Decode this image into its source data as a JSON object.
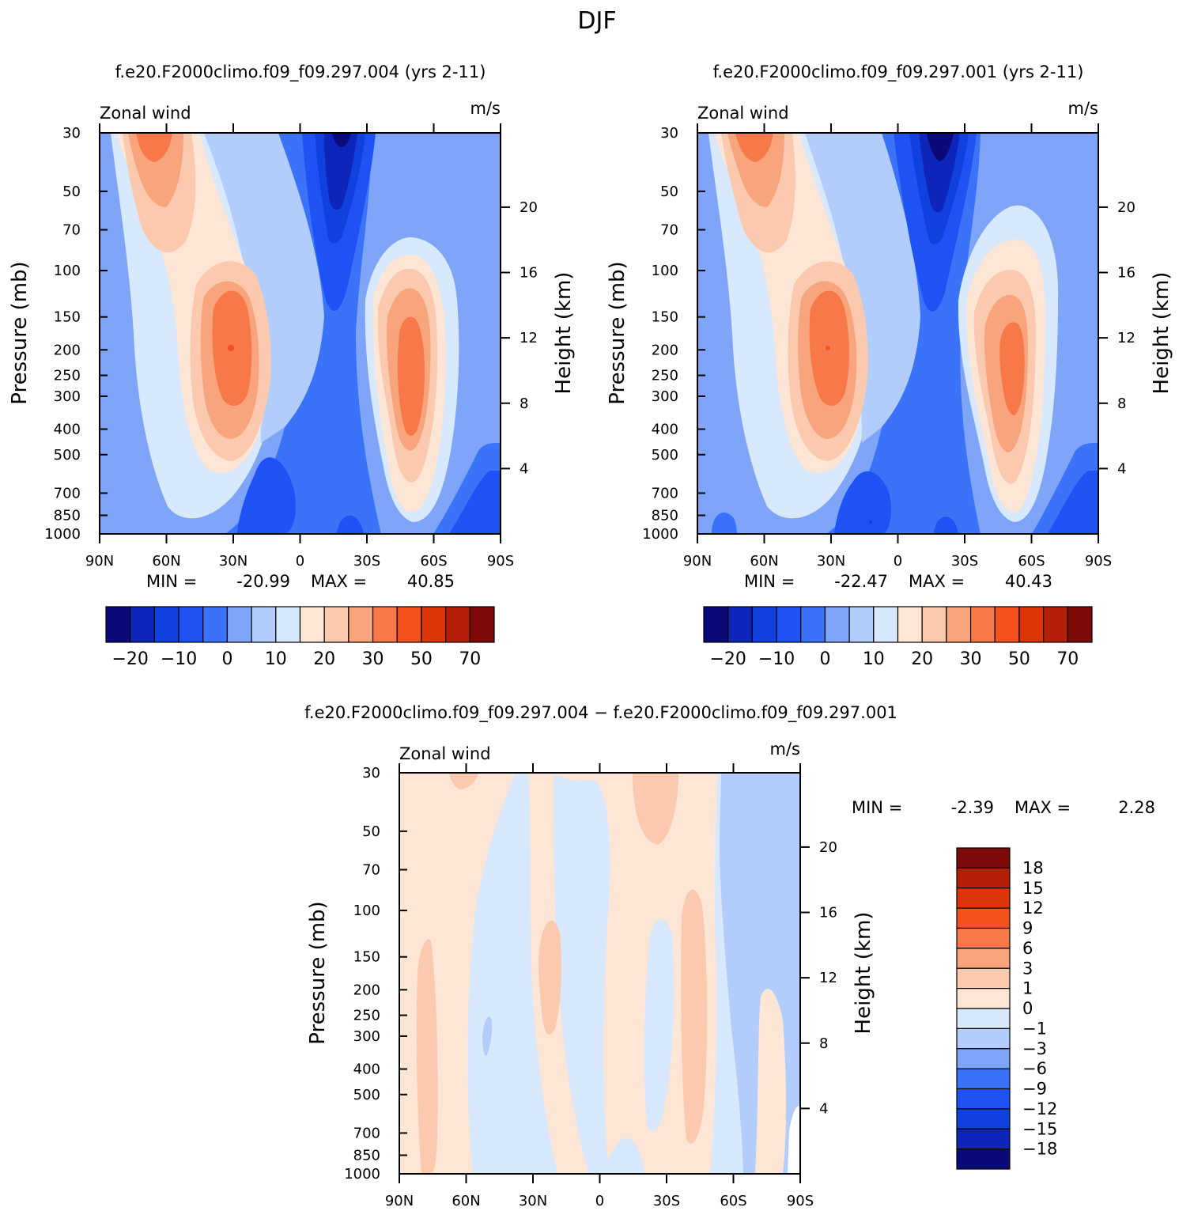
{
  "figure": {
    "season": "DJF",
    "field_label": "Zonal wind",
    "units": "m/s",
    "pressure_label": "Pressure (mb)",
    "height_label": "Height (km)"
  },
  "chart_data": [
    {
      "type": "heatmap",
      "title": "f.e20.F2000climo.f09_f09.297.004 (yrs 2-11)",
      "left_label": "Zonal wind",
      "right_label": "m/s",
      "ylabel": "Pressure (mb)",
      "ylabel_right": "Height (km)",
      "x_ticks": [
        "90N",
        "60N",
        "30N",
        "0",
        "30S",
        "60S",
        "90S"
      ],
      "x_range": [
        90,
        -90
      ],
      "y_ticks": [
        30,
        50,
        70,
        100,
        150,
        200,
        250,
        300,
        400,
        500,
        700,
        850,
        1000
      ],
      "y_range": [
        30,
        1000
      ],
      "y_scale": "log",
      "height_ticks_km": [
        20,
        16,
        12,
        8,
        4
      ],
      "min_label": "MIN =",
      "max_label": "MAX =",
      "min": "-20.99",
      "max": "40.85",
      "colorbar": {
        "orientation": "horizontal",
        "levels": [
          -25,
          -20,
          -15,
          -10,
          -5,
          0,
          5,
          10,
          15,
          20,
          25,
          30,
          40,
          50,
          60,
          70
        ],
        "labels": [
          "−20",
          "−10",
          "0",
          "10",
          "20",
          "30",
          "50",
          "70"
        ],
        "colors": [
          "#0a0a78",
          "#0d25b8",
          "#1040dd",
          "#1e52f5",
          "#3a72f8",
          "#7ea5f8",
          "#b2cdfb",
          "#d8e8fd",
          "#fde6d5",
          "#fbc9ae",
          "#f8a47c",
          "#f77848",
          "#f4521d",
          "#dd3408",
          "#b42007",
          "#7e0a0a"
        ]
      },
      "features": {
        "nh_jet": {
          "lat": 30,
          "p": 200,
          "max": 40.85
        },
        "sh_jet": {
          "lat": -50,
          "p": 200,
          "value": 35
        },
        "nh_stratosphere_westerly": {
          "lat": 66,
          "p": 30,
          "value": 27
        },
        "tropical_easterly": {
          "lat": -15,
          "p": 30,
          "min": -20.99
        }
      }
    },
    {
      "type": "heatmap",
      "title": "f.e20.F2000climo.f09_f09.297.001 (yrs 2-11)",
      "left_label": "Zonal wind",
      "right_label": "m/s",
      "ylabel": "Pressure (mb)",
      "ylabel_right": "Height (km)",
      "x_ticks": [
        "90N",
        "60N",
        "30N",
        "0",
        "30S",
        "60S",
        "90S"
      ],
      "x_range": [
        90,
        -90
      ],
      "y_ticks": [
        30,
        50,
        70,
        100,
        150,
        200,
        250,
        300,
        400,
        500,
        700,
        850,
        1000
      ],
      "y_range": [
        30,
        1000
      ],
      "y_scale": "log",
      "height_ticks_km": [
        20,
        16,
        12,
        8,
        4
      ],
      "min_label": "MIN =",
      "max_label": "MAX =",
      "min": "-22.47",
      "max": "40.43",
      "colorbar": {
        "orientation": "horizontal",
        "levels": [
          -25,
          -20,
          -15,
          -10,
          -5,
          0,
          5,
          10,
          15,
          20,
          25,
          30,
          40,
          50,
          60,
          70
        ],
        "labels": [
          "−20",
          "−10",
          "0",
          "10",
          "20",
          "30",
          "50",
          "70"
        ],
        "colors": [
          "#0a0a78",
          "#0d25b8",
          "#1040dd",
          "#1e52f5",
          "#3a72f8",
          "#7ea5f8",
          "#b2cdfb",
          "#d8e8fd",
          "#fde6d5",
          "#fbc9ae",
          "#f8a47c",
          "#f77848",
          "#f4521d",
          "#dd3408",
          "#b42007",
          "#7e0a0a"
        ]
      },
      "features": {
        "nh_jet": {
          "lat": 31,
          "p": 200,
          "max": 40.43
        },
        "sh_jet": {
          "lat": -52,
          "p": 230,
          "value": 33
        },
        "nh_stratosphere_westerly": {
          "lat": 67,
          "p": 30,
          "value": 27
        },
        "tropical_easterly": {
          "lat": -18,
          "p": 30,
          "min": -22.47
        }
      }
    },
    {
      "type": "heatmap",
      "title": "f.e20.F2000climo.f09_f09.297.004 − f.e20.F2000climo.f09_f09.297.001",
      "left_label": "Zonal wind",
      "right_label": "m/s",
      "ylabel": "Pressure (mb)",
      "ylabel_right": "Height (km)",
      "x_ticks": [
        "90N",
        "60N",
        "30N",
        "0",
        "30S",
        "60S",
        "90S"
      ],
      "x_range": [
        90,
        -90
      ],
      "y_ticks": [
        30,
        50,
        70,
        100,
        150,
        200,
        250,
        300,
        400,
        500,
        700,
        850,
        1000
      ],
      "y_range": [
        30,
        1000
      ],
      "y_scale": "log",
      "height_ticks_km": [
        20,
        16,
        12,
        8,
        4
      ],
      "min_label": "MIN =",
      "max_label": "MAX =",
      "min": "-2.39",
      "max": "2.28",
      "colorbar": {
        "orientation": "vertical",
        "levels": [
          -21,
          -18,
          -15,
          -12,
          -9,
          -6,
          -3,
          -1,
          0,
          1,
          3,
          6,
          9,
          12,
          15,
          18,
          21
        ],
        "labels": [
          "18",
          "15",
          "12",
          "9",
          "6",
          "3",
          "1",
          "0",
          "−1",
          "−3",
          "−6",
          "−9",
          "−12",
          "−15",
          "−18"
        ],
        "colors_top_to_bottom": [
          "#7e0a0a",
          "#b42007",
          "#dd3408",
          "#f4521d",
          "#f77848",
          "#f8a47c",
          "#fbc9ae",
          "#fde6d5",
          "#d8e8fd",
          "#b2cdfb",
          "#7ea5f8",
          "#3a72f8",
          "#1e52f5",
          "#1040dd",
          "#0d25b8",
          "#0a0a78"
        ]
      },
      "features": {
        "sh_high_lat_negative": {
          "lat": -75,
          "value": -2
        }
      }
    }
  ]
}
